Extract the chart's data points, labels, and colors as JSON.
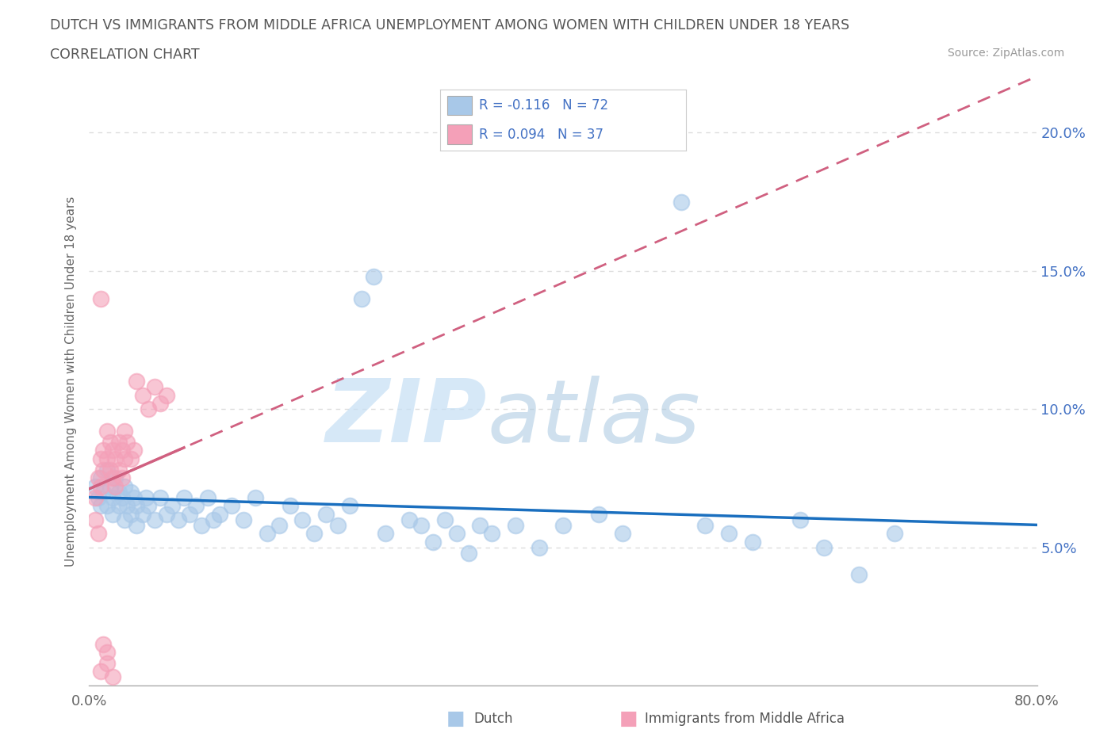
{
  "title": "DUTCH VS IMMIGRANTS FROM MIDDLE AFRICA UNEMPLOYMENT AMONG WOMEN WITH CHILDREN UNDER 18 YEARS",
  "subtitle": "CORRELATION CHART",
  "source": "Source: ZipAtlas.com",
  "ylabel": "Unemployment Among Women with Children Under 18 years",
  "legend_dutch_R": "R = -0.116",
  "legend_dutch_N": "N = 72",
  "legend_imm_R": "R = 0.094",
  "legend_imm_N": "N = 37",
  "legend_dutch_label": "Dutch",
  "legend_imm_label": "Immigrants from Middle Africa",
  "dutch_color": "#a8c8e8",
  "imm_color": "#f4a0b8",
  "dutch_line_color": "#1a6fbf",
  "imm_line_color": "#d06080",
  "xlim": [
    0.0,
    0.8
  ],
  "ylim": [
    0.0,
    0.22
  ],
  "xtick_vals": [
    0.0,
    0.1,
    0.2,
    0.3,
    0.4,
    0.5,
    0.6,
    0.7,
    0.8
  ],
  "ytick_vals": [
    0.0,
    0.05,
    0.1,
    0.15,
    0.2
  ],
  "ytick_labels": [
    "",
    "5.0%",
    "10.0%",
    "15.0%",
    "20.0%"
  ],
  "grid_color": "#dddddd",
  "background_color": "#ffffff",
  "watermark_zip": "ZIP",
  "watermark_atlas": "atlas",
  "dutch_points": [
    [
      0.005,
      0.072
    ],
    [
      0.008,
      0.068
    ],
    [
      0.01,
      0.075
    ],
    [
      0.01,
      0.065
    ],
    [
      0.012,
      0.07
    ],
    [
      0.015,
      0.078
    ],
    [
      0.015,
      0.065
    ],
    [
      0.018,
      0.072
    ],
    [
      0.02,
      0.068
    ],
    [
      0.02,
      0.062
    ],
    [
      0.022,
      0.075
    ],
    [
      0.025,
      0.07
    ],
    [
      0.025,
      0.065
    ],
    [
      0.028,
      0.068
    ],
    [
      0.03,
      0.072
    ],
    [
      0.03,
      0.06
    ],
    [
      0.032,
      0.065
    ],
    [
      0.035,
      0.07
    ],
    [
      0.035,
      0.062
    ],
    [
      0.038,
      0.068
    ],
    [
      0.04,
      0.065
    ],
    [
      0.04,
      0.058
    ],
    [
      0.045,
      0.062
    ],
    [
      0.048,
      0.068
    ],
    [
      0.05,
      0.065
    ],
    [
      0.055,
      0.06
    ],
    [
      0.06,
      0.068
    ],
    [
      0.065,
      0.062
    ],
    [
      0.07,
      0.065
    ],
    [
      0.075,
      0.06
    ],
    [
      0.08,
      0.068
    ],
    [
      0.085,
      0.062
    ],
    [
      0.09,
      0.065
    ],
    [
      0.095,
      0.058
    ],
    [
      0.1,
      0.068
    ],
    [
      0.105,
      0.06
    ],
    [
      0.11,
      0.062
    ],
    [
      0.12,
      0.065
    ],
    [
      0.13,
      0.06
    ],
    [
      0.14,
      0.068
    ],
    [
      0.15,
      0.055
    ],
    [
      0.16,
      0.058
    ],
    [
      0.17,
      0.065
    ],
    [
      0.18,
      0.06
    ],
    [
      0.19,
      0.055
    ],
    [
      0.2,
      0.062
    ],
    [
      0.21,
      0.058
    ],
    [
      0.22,
      0.065
    ],
    [
      0.23,
      0.14
    ],
    [
      0.24,
      0.148
    ],
    [
      0.25,
      0.055
    ],
    [
      0.27,
      0.06
    ],
    [
      0.28,
      0.058
    ],
    [
      0.29,
      0.052
    ],
    [
      0.3,
      0.06
    ],
    [
      0.31,
      0.055
    ],
    [
      0.32,
      0.048
    ],
    [
      0.33,
      0.058
    ],
    [
      0.34,
      0.055
    ],
    [
      0.36,
      0.058
    ],
    [
      0.38,
      0.05
    ],
    [
      0.4,
      0.058
    ],
    [
      0.43,
      0.062
    ],
    [
      0.45,
      0.055
    ],
    [
      0.5,
      0.175
    ],
    [
      0.52,
      0.058
    ],
    [
      0.54,
      0.055
    ],
    [
      0.56,
      0.052
    ],
    [
      0.6,
      0.06
    ],
    [
      0.62,
      0.05
    ],
    [
      0.65,
      0.04
    ],
    [
      0.68,
      0.055
    ]
  ],
  "imm_points": [
    [
      0.005,
      0.068
    ],
    [
      0.008,
      0.075
    ],
    [
      0.01,
      0.082
    ],
    [
      0.01,
      0.072
    ],
    [
      0.012,
      0.085
    ],
    [
      0.012,
      0.078
    ],
    [
      0.015,
      0.092
    ],
    [
      0.015,
      0.082
    ],
    [
      0.018,
      0.088
    ],
    [
      0.018,
      0.078
    ],
    [
      0.02,
      0.085
    ],
    [
      0.02,
      0.075
    ],
    [
      0.022,
      0.082
    ],
    [
      0.022,
      0.072
    ],
    [
      0.025,
      0.088
    ],
    [
      0.025,
      0.078
    ],
    [
      0.028,
      0.085
    ],
    [
      0.028,
      0.075
    ],
    [
      0.03,
      0.092
    ],
    [
      0.03,
      0.082
    ],
    [
      0.032,
      0.088
    ],
    [
      0.035,
      0.082
    ],
    [
      0.038,
      0.085
    ],
    [
      0.04,
      0.11
    ],
    [
      0.045,
      0.105
    ],
    [
      0.05,
      0.1
    ],
    [
      0.055,
      0.108
    ],
    [
      0.06,
      0.102
    ],
    [
      0.065,
      0.105
    ],
    [
      0.01,
      0.14
    ],
    [
      0.005,
      0.06
    ],
    [
      0.008,
      0.055
    ],
    [
      0.012,
      0.015
    ],
    [
      0.015,
      0.012
    ],
    [
      0.01,
      0.005
    ],
    [
      0.015,
      0.008
    ],
    [
      0.02,
      0.003
    ]
  ]
}
